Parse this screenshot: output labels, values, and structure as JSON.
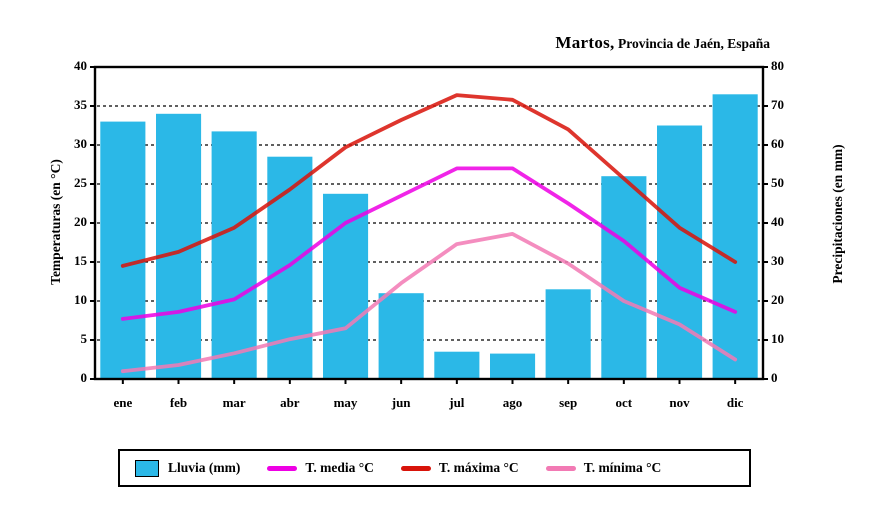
{
  "title": {
    "place": "Martos,",
    "region": " Provincia de Jaén, España"
  },
  "axes": {
    "left_label": "Temperaturas (en °C)",
    "right_label": "Precipitaciones (en mm)",
    "left_ticks": [
      0,
      5,
      10,
      15,
      20,
      25,
      30,
      35,
      40
    ],
    "right_ticks": [
      0,
      10,
      20,
      30,
      40,
      50,
      60,
      70,
      80
    ]
  },
  "legend": [
    {
      "swatch": "bar",
      "color": "#2BB8E7",
      "label": "Lluvia (mm)"
    },
    {
      "swatch": "line",
      "color": "#EE00E4",
      "label": "T. media °C"
    },
    {
      "swatch": "line",
      "color": "#D8140A",
      "label": "T. máxima °C"
    },
    {
      "swatch": "line",
      "color": "#F27AB4",
      "label": "T. mínima °C"
    }
  ],
  "chart_data": {
    "type": "bar+line",
    "title": "Martos, Provincia de Jaén, España",
    "categories": [
      "ene",
      "feb",
      "mar",
      "abr",
      "may",
      "jun",
      "jul",
      "ago",
      "sep",
      "oct",
      "nov",
      "dic"
    ],
    "series": [
      {
        "name": "Lluvia (mm)",
        "type": "bar",
        "axis": "right",
        "color": "#2BB8E7",
        "values": [
          66,
          68,
          63.5,
          57,
          47.5,
          22,
          7,
          6.5,
          23,
          52,
          65,
          73
        ]
      },
      {
        "name": "T. media °C",
        "type": "line",
        "axis": "left",
        "color": "#EE00E4",
        "values": [
          7.7,
          8.6,
          10.2,
          14.6,
          20,
          23.5,
          27,
          27,
          22.5,
          17.7,
          11.7,
          8.6
        ]
      },
      {
        "name": "T. máxima °C",
        "type": "line",
        "axis": "left",
        "color": "#D8140A",
        "values": [
          14.5,
          16.3,
          19.4,
          24.3,
          29.7,
          33.2,
          36.4,
          35.8,
          32,
          25.7,
          19.4,
          15
        ]
      },
      {
        "name": "T. mínima °C",
        "type": "line",
        "axis": "left",
        "color": "#F27AB4",
        "values": [
          1,
          1.8,
          3.3,
          5.1,
          6.5,
          12.3,
          17.3,
          18.6,
          14.8,
          10,
          7,
          2.5
        ]
      }
    ],
    "ylabel_left": "Temperaturas (en °C)",
    "ylabel_right": "Precipitaciones (en mm)",
    "ylim_left": [
      0,
      40
    ],
    "ylim_right": [
      0,
      80
    ],
    "grid": "horizontal dashed lines every 5 °C (5–35), none at 0 and 40",
    "legend_position": "bottom"
  }
}
